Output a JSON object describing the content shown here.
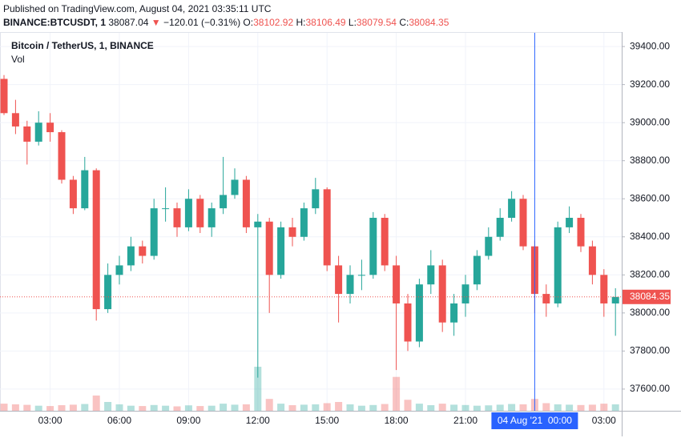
{
  "header": {
    "published": "Published on TradingView.com, August 04, 2021 03:35:11 UTC",
    "symbol": "BINANCE:BTCUSDT, 1",
    "last": "38087.04",
    "arrow": "▼",
    "change": "−120.01 (−0.31%)",
    "ohlc": [
      {
        "label": "O:",
        "value": "38102.92"
      },
      {
        "label": "H:",
        "value": "38106.49"
      },
      {
        "label": "L:",
        "value": "38079.54"
      },
      {
        "label": "C:",
        "value": "38084.35"
      }
    ]
  },
  "chart_data": {
    "type": "candlestick",
    "title": "Bitcoin / TetherUS, 1, BINANCE",
    "volume_label": "Vol",
    "categories": [
      null,
      null,
      null,
      null,
      "03:00",
      null,
      null,
      null,
      null,
      null,
      "06:00",
      null,
      null,
      null,
      null,
      null,
      "09:00",
      null,
      null,
      null,
      null,
      null,
      "12:00",
      null,
      null,
      null,
      null,
      null,
      "15:00",
      null,
      null,
      null,
      null,
      null,
      "18:00",
      null,
      null,
      null,
      null,
      null,
      "21:00",
      null,
      null,
      null,
      null,
      null,
      null,
      null,
      null,
      null,
      null,
      null,
      "03:00",
      null
    ],
    "crosshair": {
      "index": 46,
      "label": "04 Aug '21  00:00"
    },
    "open": [
      39230,
      39050,
      38980,
      38900,
      39000,
      38950,
      38700,
      38550,
      38750,
      38020,
      38200,
      38250,
      38350,
      38300,
      38550,
      38550,
      38450,
      38600,
      38450,
      38550,
      38620,
      38700,
      38450,
      38480,
      38200,
      38450,
      38400,
      38550,
      38650,
      38250,
      38100,
      38200,
      38200,
      38500,
      38250,
      38050,
      37850,
      38150,
      38250,
      37950,
      38050,
      38150,
      38300,
      38400,
      38500,
      38600,
      38350,
      38100,
      38050,
      38450,
      38500,
      38350,
      38200,
      38050
    ],
    "high": [
      39250,
      39120,
      39010,
      39060,
      39050,
      38960,
      38720,
      38820,
      38760,
      38260,
      38300,
      38400,
      38380,
      38600,
      38660,
      38580,
      38650,
      38620,
      38580,
      38820,
      38760,
      38720,
      38520,
      38500,
      38480,
      38500,
      38580,
      38710,
      38660,
      38300,
      38250,
      38280,
      38530,
      38520,
      38300,
      38100,
      38180,
      38330,
      38280,
      38100,
      38200,
      38330,
      38450,
      38550,
      38640,
      38620,
      38380,
      38150,
      38480,
      38560,
      38520,
      38380,
      38230,
      38130
    ],
    "low": [
      39040,
      38940,
      38780,
      38880,
      38900,
      38680,
      38520,
      38540,
      37960,
      38000,
      38150,
      38220,
      38260,
      38280,
      38480,
      38400,
      38430,
      38420,
      38400,
      38520,
      38600,
      38420,
      37660,
      38000,
      38180,
      38350,
      38380,
      38520,
      38220,
      37950,
      38050,
      38120,
      38180,
      38220,
      37700,
      37800,
      37820,
      38100,
      37900,
      37880,
      37980,
      38120,
      38280,
      38380,
      38480,
      38330,
      38000,
      37980,
      38030,
      38420,
      38320,
      38150,
      37980,
      37880
    ],
    "close": [
      39050,
      38980,
      38900,
      39000,
      38950,
      38700,
      38550,
      38750,
      38020,
      38200,
      38250,
      38350,
      38300,
      38550,
      38550,
      38450,
      38600,
      38450,
      38550,
      38620,
      38700,
      38450,
      38480,
      38200,
      38450,
      38400,
      38550,
      38650,
      38250,
      38100,
      38200,
      38200,
      38500,
      38250,
      38050,
      37850,
      38150,
      38250,
      37950,
      38050,
      38150,
      38300,
      38400,
      38500,
      38600,
      38350,
      38100,
      38050,
      38450,
      38500,
      38350,
      38200,
      38050,
      38084.35
    ],
    "volume": [
      420,
      380,
      350,
      300,
      280,
      330,
      360,
      400,
      900,
      520,
      380,
      300,
      280,
      340,
      300,
      260,
      320,
      280,
      300,
      420,
      360,
      380,
      2600,
      700,
      420,
      330,
      360,
      380,
      450,
      520,
      380,
      300,
      340,
      400,
      2000,
      650,
      420,
      330,
      420,
      360,
      340,
      300,
      320,
      360,
      400,
      380,
      700,
      450,
      380,
      360,
      340,
      360,
      420,
      380
    ],
    "up_color": "#26a69a",
    "down_color": "#ef5350",
    "ylim": [
      37486,
      39472
    ],
    "yticks": [
      {
        "value": 37600,
        "label": "37600.00"
      },
      {
        "value": 37800,
        "label": "37800.00"
      },
      {
        "value": 38000,
        "label": "38000.00"
      },
      {
        "value": 38200,
        "label": "38200.00"
      },
      {
        "value": 38400,
        "label": "38400.00"
      },
      {
        "value": 38600,
        "label": "38600.00"
      },
      {
        "value": 38800,
        "label": "38800.00"
      },
      {
        "value": 39000,
        "label": "39000.00"
      },
      {
        "value": 39200,
        "label": "39200.00"
      },
      {
        "value": 39400,
        "label": "39400.00"
      }
    ],
    "last_price": 38084.35,
    "grid": true
  }
}
